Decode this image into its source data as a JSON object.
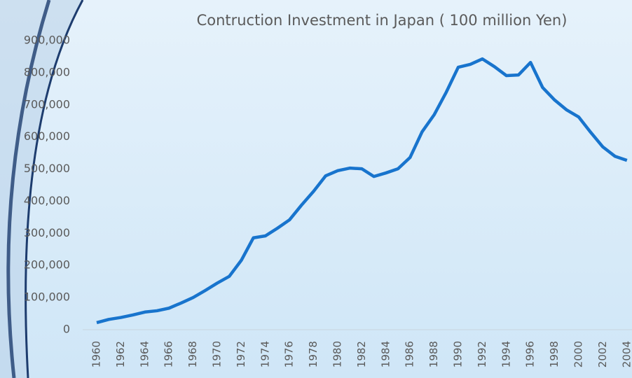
{
  "chart_data": {
    "type": "line",
    "title": "Contruction Investment in Japan ( 100 million Yen)",
    "categories": [
      "1960",
      null,
      "1962",
      null,
      "1964",
      null,
      "1966",
      null,
      "1968",
      null,
      "1970",
      null,
      "1972",
      null,
      "1974",
      null,
      "1976",
      null,
      "1978",
      null,
      "1980",
      null,
      "1982",
      null,
      "1984",
      null,
      "1986",
      null,
      "1988",
      null,
      "1990",
      null,
      "1992",
      null,
      "1994",
      null,
      "1996",
      null,
      "1998",
      null,
      "2000",
      null,
      "2002",
      null,
      "2004"
    ],
    "series": [
      {
        "name": "Construction Investment",
        "color": "#1874cd",
        "values": [
          22000,
          32000,
          38000,
          46000,
          55000,
          59000,
          67000,
          83000,
          100000,
          122000,
          145000,
          166000,
          216000,
          286000,
          292000,
          316000,
          342000,
          388000,
          431000,
          479000,
          495000,
          503000,
          501000,
          477000,
          488000,
          501000,
          536000,
          616000,
          669000,
          739000,
          817000,
          826000,
          843000,
          819000,
          791000,
          793000,
          832000,
          754000,
          715000,
          684000,
          662000,
          614000,
          569000,
          540000,
          527000
        ]
      }
    ],
    "ylim": [
      0,
      900000
    ],
    "yticks": [
      0,
      {
        "value": 100000,
        "label": "100,000"
      },
      {
        "value": 200000,
        "label": "200,000"
      },
      {
        "value": 300000,
        "label": "300,000"
      },
      {
        "value": 400000,
        "label": "400,000"
      },
      {
        "value": 500000,
        "label": "500,000"
      },
      {
        "value": 600000,
        "label": "600,000"
      },
      {
        "value": 700000,
        "label": "700,000"
      },
      {
        "value": 800000,
        "label": "800,000"
      },
      {
        "value": 900000,
        "label": "900,000"
      }
    ]
  }
}
